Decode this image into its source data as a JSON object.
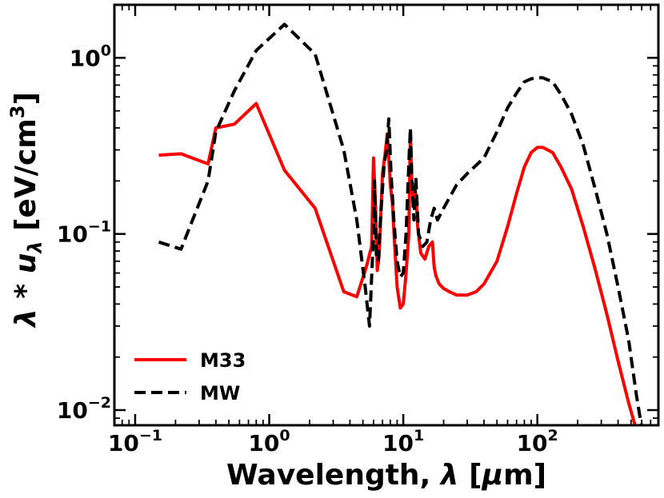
{
  "chart_data": {
    "type": "line",
    "xscale": "log",
    "yscale": "log",
    "xlim": [
      0.07,
      800
    ],
    "ylim": [
      0.0082,
      2.0
    ],
    "xlabel": {
      "prefix": "Wavelength, ",
      "symbol": "λ",
      "unit_open": " [",
      "unit_symbol": "μ",
      "unit_rest": "m]"
    },
    "ylabel": {
      "symbol1": "λ",
      "op": " * ",
      "symbol2": "u",
      "subscript": "λ",
      "unit_open": " [eV/cm",
      "unit_sup": "3",
      "unit_close": "]"
    },
    "xticks": [
      {
        "value": 0.1,
        "base": "10",
        "exp": "−1"
      },
      {
        "value": 1,
        "base": "10",
        "exp": "0"
      },
      {
        "value": 10,
        "base": "10",
        "exp": "1"
      },
      {
        "value": 100,
        "base": "10",
        "exp": "2"
      }
    ],
    "yticks": [
      {
        "value": 0.01,
        "base": "10",
        "exp": "−2"
      },
      {
        "value": 0.1,
        "base": "10",
        "exp": "−1"
      },
      {
        "value": 1,
        "base": "10",
        "exp": "0"
      }
    ],
    "legend_position": "lower-left",
    "series": [
      {
        "name": "M33",
        "color": "#ff0000",
        "linestyle": "solid",
        "x": [
          0.15,
          0.22,
          0.35,
          0.4,
          0.55,
          0.8,
          1.3,
          2.2,
          3.6,
          4.5,
          5.3,
          5.8,
          6.0,
          6.2,
          6.4,
          6.6,
          7.0,
          7.3,
          7.6,
          7.8,
          8.0,
          8.3,
          8.6,
          9.0,
          9.5,
          10.0,
          10.5,
          11.0,
          11.3,
          11.6,
          12.0,
          12.4,
          12.8,
          13.5,
          14.5,
          15.5,
          16.5,
          17.0,
          17.5,
          18.5,
          20,
          22,
          25,
          30,
          35,
          40,
          50,
          60,
          70,
          80,
          90,
          100,
          110,
          130,
          150,
          180,
          220,
          270,
          330,
          400,
          480,
          540
        ],
        "y": [
          0.28,
          0.285,
          0.25,
          0.4,
          0.42,
          0.55,
          0.23,
          0.14,
          0.047,
          0.044,
          0.065,
          0.085,
          0.27,
          0.15,
          0.062,
          0.075,
          0.22,
          0.28,
          0.37,
          0.27,
          0.19,
          0.15,
          0.09,
          0.05,
          0.038,
          0.04,
          0.06,
          0.1,
          0.38,
          0.18,
          0.15,
          0.17,
          0.11,
          0.078,
          0.072,
          0.085,
          0.09,
          0.065,
          0.058,
          0.052,
          0.049,
          0.047,
          0.045,
          0.045,
          0.047,
          0.052,
          0.07,
          0.11,
          0.17,
          0.24,
          0.29,
          0.31,
          0.31,
          0.29,
          0.24,
          0.18,
          0.11,
          0.063,
          0.035,
          0.019,
          0.011,
          0.008
        ]
      },
      {
        "name": "MW",
        "color": "#000000",
        "linestyle": "dashed",
        "x": [
          0.15,
          0.22,
          0.35,
          0.4,
          0.55,
          0.8,
          1.3,
          2.2,
          3.6,
          4.5,
          5.2,
          5.6,
          6.0,
          6.1,
          6.3,
          6.5,
          6.8,
          7.2,
          7.5,
          7.8,
          8.1,
          8.5,
          9.0,
          9.5,
          10.0,
          10.5,
          11.0,
          11.3,
          11.6,
          12.0,
          12.4,
          13.0,
          14.0,
          15.0,
          16.0,
          17.0,
          18.0,
          20,
          25,
          30,
          40,
          50,
          60,
          70,
          80,
          90,
          100,
          110,
          130,
          150,
          180,
          220,
          270,
          330,
          400,
          480,
          550,
          600
        ],
        "y": [
          0.09,
          0.082,
          0.2,
          0.38,
          0.65,
          1.1,
          1.55,
          1.05,
          0.3,
          0.12,
          0.05,
          0.03,
          0.1,
          0.2,
          0.075,
          0.07,
          0.13,
          0.25,
          0.3,
          0.45,
          0.22,
          0.12,
          0.07,
          0.057,
          0.06,
          0.1,
          0.25,
          0.4,
          0.2,
          0.12,
          0.21,
          0.1,
          0.085,
          0.09,
          0.12,
          0.14,
          0.12,
          0.14,
          0.19,
          0.22,
          0.27,
          0.38,
          0.52,
          0.63,
          0.73,
          0.76,
          0.77,
          0.77,
          0.73,
          0.62,
          0.48,
          0.32,
          0.18,
          0.1,
          0.05,
          0.025,
          0.012,
          0.008
        ]
      }
    ]
  }
}
